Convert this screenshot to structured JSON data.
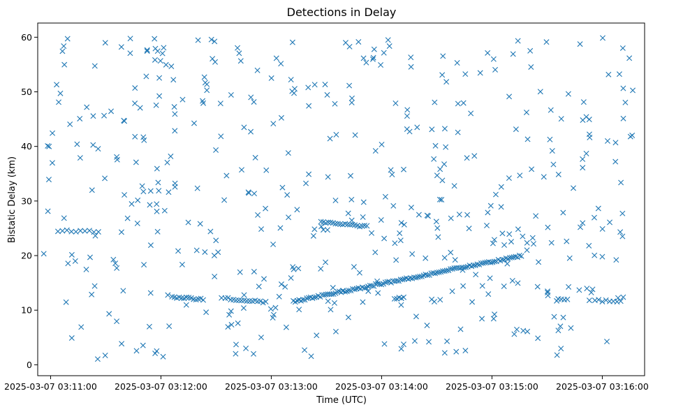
{
  "chart_data": {
    "type": "scatter",
    "title": "Detections in Delay",
    "xlabel": "Time (UTC)",
    "ylabel": "Bistatic Delay (km)",
    "x_unit": "seconds after 2025-03-07 03:10:00 UTC",
    "xlim": [
      53,
      383
    ],
    "ylim": [
      -2,
      62.6
    ],
    "x_ticks": [
      60,
      120,
      180,
      240,
      300,
      360
    ],
    "x_tick_labels": [
      "2025-03-07 03:11:00",
      "2025-03-07 03:12:00",
      "2025-03-07 03:13:00",
      "2025-03-07 03:14:00",
      "2025-03-07 03:15:00",
      "2025-03-07 03:16:00"
    ],
    "y_ticks": [
      0,
      10,
      20,
      30,
      40,
      50,
      60
    ],
    "y_tick_labels": [
      "0",
      "10",
      "20",
      "30",
      "40",
      "50",
      "60"
    ],
    "grid": false,
    "marker": "x",
    "color": "#1f77b4",
    "tracks": [
      {
        "t_start": 64,
        "t_end": 86,
        "delay_start": 24.6,
        "delay_end": 24.4,
        "points": 10
      },
      {
        "t_start": 126,
        "t_end": 143,
        "delay_start": 12.4,
        "delay_end": 12.0,
        "points": 14
      },
      {
        "t_start": 155,
        "t_end": 177,
        "delay_start": 12.2,
        "delay_end": 11.4,
        "points": 16
      },
      {
        "t_start": 192,
        "t_end": 316,
        "delay_start": 11.6,
        "delay_end": 20.0,
        "points": 120
      },
      {
        "t_start": 207,
        "t_end": 232,
        "delay_start": 26.2,
        "delay_end": 25.3,
        "points": 20
      },
      {
        "t_start": 247,
        "t_end": 252,
        "delay_start": 12.2,
        "delay_end": 12.2,
        "points": 5
      },
      {
        "t_start": 336,
        "t_end": 341,
        "delay_start": 12.0,
        "delay_end": 11.8,
        "points": 4
      },
      {
        "t_start": 356,
        "t_end": 370,
        "delay_start": 11.8,
        "delay_end": 11.5,
        "points": 8
      }
    ],
    "clutter_points": 480
  }
}
